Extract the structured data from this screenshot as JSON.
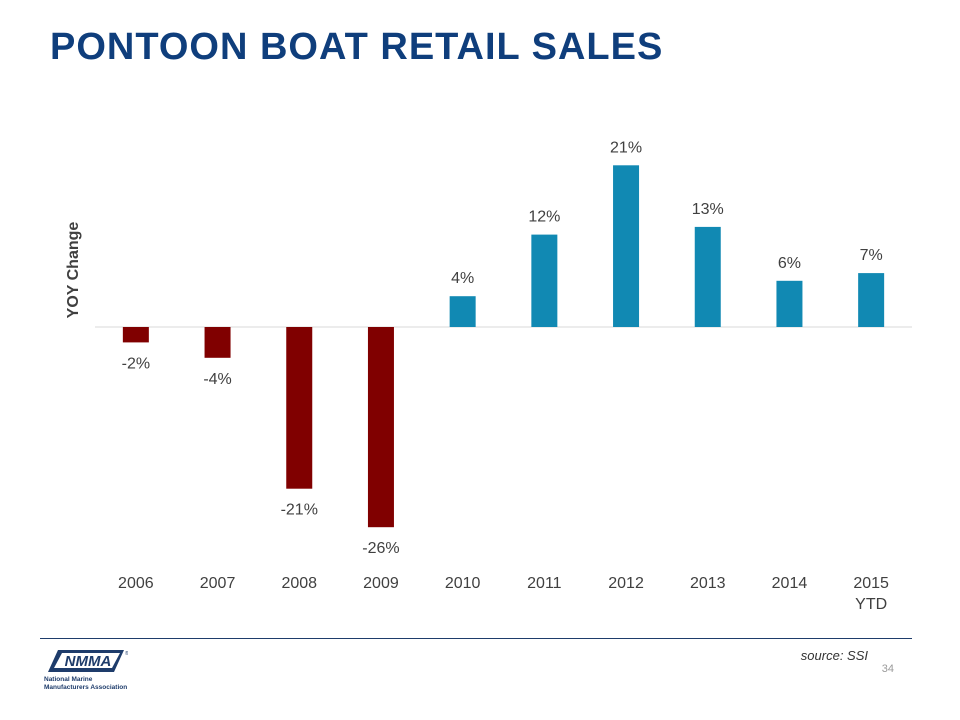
{
  "slide": {
    "title": "PONTOON BOAT RETAIL SALES",
    "source": "source: SSI",
    "page_number": "34"
  },
  "logo": {
    "wordmark": "NMMA",
    "registered": "®",
    "line1": "National Marine",
    "line2": "Manufacturers Association"
  },
  "colors": {
    "title": "#0f3e7c",
    "negative": "#800000",
    "positive": "#1189b3",
    "footer_rule": "#1e3c6b"
  },
  "chart_data": {
    "type": "bar",
    "title": "",
    "xlabel": "",
    "ylabel": "YOY Change",
    "categories": [
      "2006",
      "2007",
      "2008",
      "2009",
      "2010",
      "2011",
      "2012",
      "2013",
      "2014",
      "2015 YTD"
    ],
    "values": [
      -2,
      -4,
      -21,
      -26,
      4,
      12,
      21,
      13,
      6,
      7
    ],
    "data_labels": [
      "-2%",
      "-4%",
      "-21%",
      "-26%",
      "4%",
      "12%",
      "21%",
      "13%",
      "6%",
      "7%"
    ],
    "unit": "%",
    "grid": false,
    "legend": "none"
  }
}
